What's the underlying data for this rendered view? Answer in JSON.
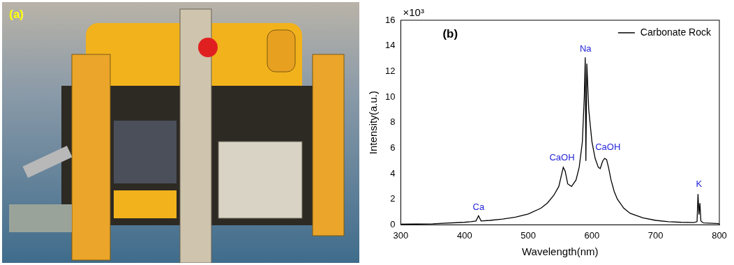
{
  "panel_a": {
    "label": "(a)"
  },
  "chart_data": {
    "type": "line",
    "title": "(b)",
    "xlabel": "Wavelength(nm)",
    "ylabel": "Intensity(a.u.)",
    "x": [
      300,
      350,
      400,
      410,
      418,
      422,
      426,
      440,
      460,
      480,
      500,
      520,
      530,
      540,
      548,
      555,
      558,
      562,
      568,
      575,
      580,
      585,
      588,
      589.5,
      590.5,
      592,
      595,
      600,
      605,
      610,
      613,
      617,
      620,
      623,
      626,
      630,
      635,
      640,
      650,
      660,
      680,
      700,
      720,
      740,
      760,
      765,
      766.5,
      768,
      769.5,
      771,
      775,
      800
    ],
    "series": [
      {
        "name": "Carbonate Rock",
        "color": "#000000",
        "values": [
          0.05,
          0.08,
          0.2,
          0.25,
          0.3,
          0.7,
          0.3,
          0.35,
          0.45,
          0.6,
          0.85,
          1.3,
          1.7,
          2.3,
          3.0,
          4.5,
          4.2,
          3.2,
          3.0,
          3.5,
          4.5,
          6.5,
          10,
          13.1,
          5.0,
          12.6,
          9,
          6.5,
          5.2,
          4.5,
          4.4,
          5.0,
          5.2,
          5.1,
          4.5,
          3.5,
          2.6,
          2.0,
          1.3,
          0.9,
          0.55,
          0.35,
          0.25,
          0.2,
          0.18,
          0.25,
          2.4,
          0.8,
          1.7,
          0.3,
          0.15,
          0.1
        ]
      }
    ],
    "xlim": [
      300,
      800
    ],
    "xticks": [
      300,
      400,
      500,
      600,
      700,
      800
    ],
    "ylim": [
      0,
      16
    ],
    "yticks": [
      0,
      2,
      4,
      6,
      8,
      10,
      12,
      14,
      16
    ],
    "grid": false,
    "legend": "upper right",
    "annotations": [
      {
        "text": "×10³"
      },
      {
        "text": "Ca",
        "x": 422,
        "y": 1.0
      },
      {
        "text": "CaOH",
        "x": 553,
        "y": 4.9
      },
      {
        "text": "Na",
        "x": 590,
        "y": 13.4
      },
      {
        "text": "CaOH",
        "x": 625,
        "y": 5.7
      },
      {
        "text": "K",
        "x": 768,
        "y": 2.8
      }
    ]
  }
}
